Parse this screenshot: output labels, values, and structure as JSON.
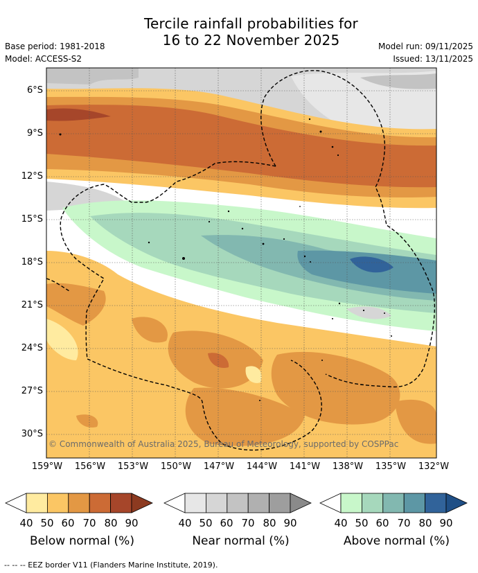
{
  "title": {
    "line1": "Tercile rainfall probabilities for",
    "line2": "16 to 22 November 2025"
  },
  "meta": {
    "base_period": "Base period: 1981-2018",
    "model": "Model: ACCESS-S2",
    "model_run": "Model run: 09/11/2025",
    "issued": "Issued: 13/11/2025"
  },
  "map": {
    "lat_labels": [
      "6°S",
      "9°S",
      "12°S",
      "15°S",
      "18°S",
      "21°S",
      "24°S",
      "27°S",
      "30°S"
    ],
    "lon_labels": [
      "159°W",
      "156°W",
      "153°W",
      "150°W",
      "147°W",
      "144°W",
      "141°W",
      "138°W",
      "135°W",
      "132°W"
    ],
    "copyright": "© Commonwealth of Australia 2025, Bureau of Meteorology, supported by COSPPac"
  },
  "legends": [
    {
      "title": "Below normal (%)",
      "ticks": [
        "40",
        "50",
        "60",
        "70",
        "80",
        "90"
      ],
      "colors": [
        "#ffeba0",
        "#fbc664",
        "#e39844",
        "#cc6b35",
        "#a6462a",
        "#8c3a20"
      ]
    },
    {
      "title": "Near normal (%)",
      "ticks": [
        "40",
        "50",
        "60",
        "70",
        "80",
        "90"
      ],
      "colors": [
        "#e7e7e7",
        "#d6d6d6",
        "#c3c3c3",
        "#b0b0b0",
        "#9e9e9e",
        "#8a8a8a"
      ]
    },
    {
      "title": "Above normal (%)",
      "ticks": [
        "40",
        "50",
        "60",
        "70",
        "80",
        "90"
      ],
      "colors": [
        "#c8f7ca",
        "#a6d8bc",
        "#82b8b0",
        "#5d97a5",
        "#31639a",
        "#1f4f86"
      ]
    }
  ],
  "footnote": "--  --  -- EEZ border V11 (Flanders Marine Institute, 2019)."
}
